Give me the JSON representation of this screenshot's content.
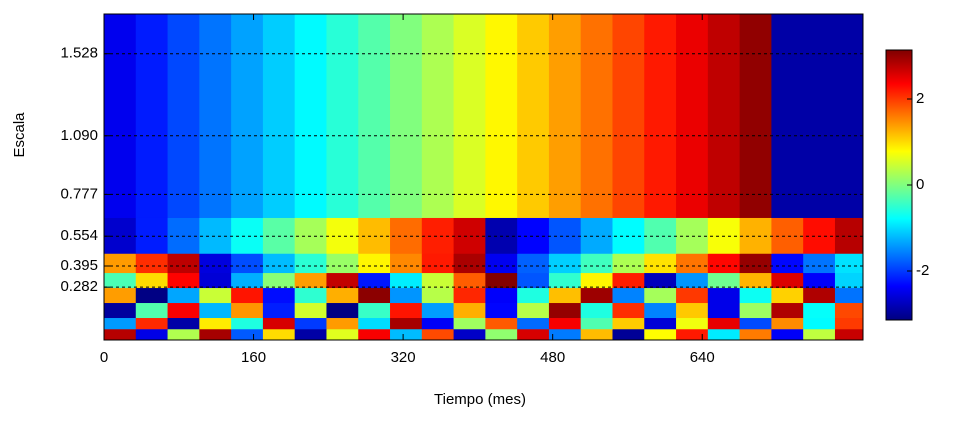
{
  "chart_data": {
    "type": "heatmap",
    "xlabel": "Tiempo (mes)",
    "ylabel": "Escala",
    "xlim": [
      0,
      812
    ],
    "xticks": [
      0,
      160,
      320,
      480,
      640
    ],
    "ylim": [
      0,
      1.74
    ],
    "yticks": [
      0.282,
      0.395,
      0.554,
      0.777,
      {
        "value": 1.09,
        "label": "1.090"
      },
      1.528
    ],
    "grid": true,
    "colormap": "jet",
    "clim": [
      -3.14,
      3.14
    ],
    "cticks": [
      -2,
      0,
      2
    ],
    "x_edges": [
      0,
      34,
      68,
      102,
      136,
      170,
      204,
      238,
      272,
      306,
      340,
      374,
      408,
      442,
      476,
      510,
      544,
      578,
      612,
      646,
      680,
      714,
      748,
      782,
      812
    ],
    "y_edges": [
      0,
      0.06,
      0.12,
      0.2,
      0.28,
      0.36,
      0.463,
      0.654,
      1.74
    ],
    "z": [
      [
        2.8,
        -2.5,
        0.3,
        2.9,
        -1.8,
        1.0,
        -2.9,
        0.6,
        2.4,
        -1.2,
        1.9,
        -2.7,
        0.1,
        2.6,
        -1.6,
        1.2,
        -3.0,
        0.8,
        2.2,
        -0.9,
        1.6,
        -2.4,
        0.4,
        2.7
      ],
      [
        -1.4,
        2.1,
        -2.9,
        0.9,
        -0.6,
        2.6,
        -2.0,
        1.4,
        -1.0,
        2.9,
        -2.4,
        0.2,
        1.8,
        -1.7,
        2.4,
        -0.3,
        1.1,
        -2.6,
        0.7,
        2.5,
        -1.9,
        1.5,
        -0.8,
        2.0
      ],
      [
        -2.95,
        -0.28,
        2.39,
        -1.23,
        1.44,
        -2.17,
        0.5,
        -3.11,
        -0.44,
        2.23,
        -1.39,
        1.28,
        -2.33,
        0.34,
        3.01,
        -0.6,
        2.07,
        -1.55,
        1.12,
        -2.49,
        0.18,
        2.85,
        -0.76,
        1.91
      ],
      [
        1.39,
        -3.11,
        -1.33,
        0.45,
        2.23,
        -2.28,
        -0.5,
        1.28,
        3.06,
        -1.44,
        0.34,
        2.12,
        -2.38,
        -0.6,
        1.18,
        2.96,
        -1.55,
        0.23,
        2.01,
        -2.49,
        -0.71,
        1.07,
        2.85,
        -1.65
      ],
      [
        -0.33,
        1.0,
        2.34,
        -2.61,
        -1.28,
        0.06,
        1.39,
        2.73,
        -2.22,
        -0.89,
        0.45,
        1.78,
        3.12,
        -1.83,
        -0.49,
        0.84,
        2.18,
        -2.77,
        -1.44,
        -0.1,
        1.24,
        2.57,
        -2.38,
        -1.05
      ],
      [
        1.4,
        2.08,
        2.76,
        -2.56,
        -1.88,
        -1.2,
        -0.52,
        0.16,
        0.84,
        1.52,
        2.2,
        2.88,
        -2.44,
        -1.76,
        -1.08,
        -0.4,
        0.28,
        0.96,
        1.64,
        2.32,
        3.0,
        -2.32,
        -1.64,
        -0.96
      ],
      [
        -2.66,
        -2.18,
        -1.69,
        -1.21,
        -0.73,
        -0.24,
        0.24,
        0.72,
        1.2,
        1.69,
        2.17,
        2.65,
        -2.85,
        -2.34,
        -1.83,
        -1.31,
        -0.8,
        -0.29,
        0.23,
        0.74,
        1.26,
        1.77,
        2.28,
        2.8
      ],
      [
        -2.46,
        -2.19,
        -1.91,
        -1.64,
        -1.36,
        -1.09,
        -0.81,
        -0.54,
        -0.27,
        0.01,
        0.28,
        0.56,
        0.83,
        1.11,
        1.38,
        1.66,
        1.93,
        2.2,
        2.48,
        2.75,
        3.03,
        -2.9,
        -2.9,
        -2.9
      ]
    ]
  }
}
